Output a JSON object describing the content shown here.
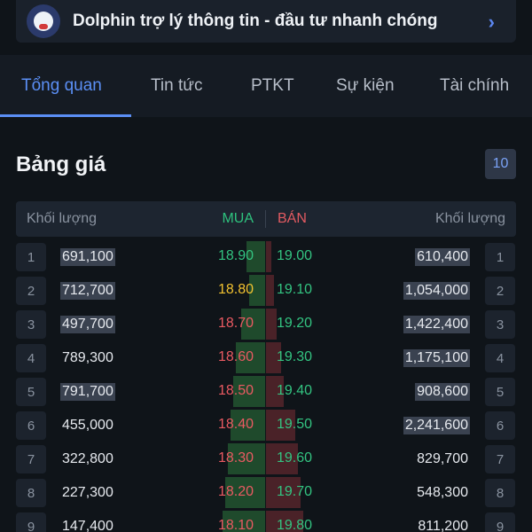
{
  "banner": {
    "text": "Dolphin trợ lý thông tin - đầu tư nhanh chóng",
    "avatar_icon": "dolphin-avatar-icon",
    "chevron_icon": "chevron-right-icon"
  },
  "tabs": [
    {
      "label": "Tổng quan",
      "active": true
    },
    {
      "label": "Tin tức",
      "active": false
    },
    {
      "label": "PTKT",
      "active": false
    },
    {
      "label": "Sự kiện",
      "active": false
    },
    {
      "label": "Tài chính",
      "active": false
    }
  ],
  "price_board": {
    "title": "Bảng giá",
    "depth": "10",
    "headers": {
      "buy_volume": "Khối lượng",
      "buy": "MUA",
      "sell": "BÁN",
      "sell_volume": "Khối lượng"
    },
    "rows": [
      {
        "idx": "1",
        "buy_vol": "691,100",
        "buy_price": "18.90",
        "buy_color": "green",
        "sell_price": "19.00",
        "sell_color": "green",
        "sell_vol": "610,400",
        "buy_hl": true,
        "sell_hl": true,
        "buy_depth": 0.35,
        "sell_depth": 0.1
      },
      {
        "idx": "2",
        "buy_vol": "712,700",
        "buy_price": "18.80",
        "buy_color": "yellow",
        "sell_price": "19.10",
        "sell_color": "green",
        "sell_vol": "1,054,000",
        "buy_hl": true,
        "sell_hl": true,
        "buy_depth": 0.3,
        "sell_depth": 0.15
      },
      {
        "idx": "3",
        "buy_vol": "497,700",
        "buy_price": "18.70",
        "buy_color": "red",
        "sell_price": "19.20",
        "sell_color": "green",
        "sell_vol": "1,422,400",
        "buy_hl": true,
        "sell_hl": true,
        "buy_depth": 0.45,
        "sell_depth": 0.2
      },
      {
        "idx": "4",
        "buy_vol": "789,300",
        "buy_price": "18.60",
        "buy_color": "red",
        "sell_price": "19.30",
        "sell_color": "green",
        "sell_vol": "1,175,100",
        "buy_hl": false,
        "sell_hl": true,
        "buy_depth": 0.55,
        "sell_depth": 0.28
      },
      {
        "idx": "5",
        "buy_vol": "791,700",
        "buy_price": "18.50",
        "buy_color": "red",
        "sell_price": "19.40",
        "sell_color": "green",
        "sell_vol": "908,600",
        "buy_hl": true,
        "sell_hl": true,
        "buy_depth": 0.6,
        "sell_depth": 0.33
      },
      {
        "idx": "6",
        "buy_vol": "455,000",
        "buy_price": "18.40",
        "buy_color": "red",
        "sell_price": "19.50",
        "sell_color": "green",
        "sell_vol": "2,241,600",
        "buy_hl": false,
        "sell_hl": true,
        "buy_depth": 0.65,
        "sell_depth": 0.55
      },
      {
        "idx": "7",
        "buy_vol": "322,800",
        "buy_price": "18.30",
        "buy_color": "red",
        "sell_price": "19.60",
        "sell_color": "green",
        "sell_vol": "829,700",
        "buy_hl": false,
        "sell_hl": false,
        "buy_depth": 0.7,
        "sell_depth": 0.6
      },
      {
        "idx": "8",
        "buy_vol": "227,300",
        "buy_price": "18.20",
        "buy_color": "red",
        "sell_price": "19.70",
        "sell_color": "green",
        "sell_vol": "548,300",
        "buy_hl": false,
        "sell_hl": false,
        "buy_depth": 0.75,
        "sell_depth": 0.65
      },
      {
        "idx": "9",
        "buy_vol": "147,400",
        "buy_price": "18.10",
        "buy_color": "red",
        "sell_price": "19.80",
        "sell_color": "green",
        "sell_vol": "811,200",
        "buy_hl": false,
        "sell_hl": false,
        "buy_depth": 0.8,
        "sell_depth": 0.7
      }
    ]
  },
  "colors": {
    "accent": "#5b8ff5",
    "buy": "#2ec27e",
    "sell": "#e25a61",
    "reference": "#f2c230"
  }
}
